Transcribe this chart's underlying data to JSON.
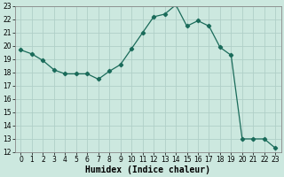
{
  "x": [
    0,
    1,
    2,
    3,
    4,
    5,
    6,
    7,
    8,
    9,
    10,
    11,
    12,
    13,
    14,
    15,
    16,
    17,
    18,
    19,
    20,
    21,
    22,
    23
  ],
  "y": [
    19.7,
    19.4,
    18.9,
    18.2,
    17.9,
    17.9,
    17.9,
    17.5,
    18.1,
    18.6,
    19.8,
    21.0,
    22.2,
    22.4,
    23.1,
    21.5,
    21.9,
    21.5,
    19.9,
    19.3,
    13.0,
    13.0,
    13.0,
    12.3
  ],
  "line_color": "#1a6b5a",
  "marker": "D",
  "marker_size": 2.2,
  "bg_color": "#cce8df",
  "grid_color": "#b0cfc8",
  "xlabel": "Humidex (Indice chaleur)",
  "ylim": [
    12,
    23
  ],
  "xlim_min": -0.5,
  "xlim_max": 23.5,
  "yticks": [
    12,
    13,
    14,
    15,
    16,
    17,
    18,
    19,
    20,
    21,
    22,
    23
  ],
  "xticks": [
    0,
    1,
    2,
    3,
    4,
    5,
    6,
    7,
    8,
    9,
    10,
    11,
    12,
    13,
    14,
    15,
    16,
    17,
    18,
    19,
    20,
    21,
    22,
    23
  ],
  "tick_fontsize": 5.5,
  "xlabel_fontsize": 7.0,
  "line_width": 0.9
}
